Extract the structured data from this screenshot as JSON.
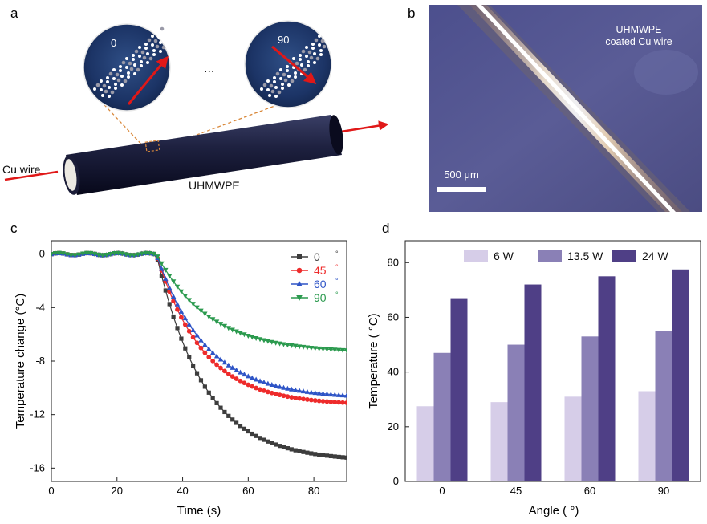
{
  "panel_labels": {
    "a": "a",
    "b": "b",
    "c": "c",
    "d": "d"
  },
  "panel_a": {
    "inset_left_angle": "0",
    "inset_right_angle": "90",
    "ellipsis": "...",
    "cu_wire_label": "Cu wire",
    "uhmwpe_label": "UHMWPE"
  },
  "panel_b": {
    "caption_line1": "UHMWPE",
    "caption_line2": "coated Cu wire",
    "scale_bar": "500 μm"
  },
  "colors": {
    "s0": "#3d3d3d",
    "s45": "#ee2b2b",
    "s60": "#2e54c6",
    "s90": "#2b9a4e",
    "light": "#d6cde8",
    "mid": "#8a80b6",
    "dark": "#4f3f86"
  },
  "chart_data": [
    {
      "type": "line",
      "title": "",
      "xlabel": "Time (s)",
      "ylabel": "Temperature change  (°C)",
      "xlim": [
        0,
        90
      ],
      "ylim": [
        -17,
        1
      ],
      "xticks": [
        0,
        20,
        40,
        60,
        80
      ],
      "yticks": [
        0,
        -4,
        -8,
        -12,
        -16
      ],
      "legend": "top-right",
      "series": [
        {
          "name": "0",
          "unit": "°",
          "color": "#3d3d3d",
          "marker": "square",
          "start": 32,
          "final": -15.5,
          "tau": 14.5
        },
        {
          "name": "45",
          "unit": "°",
          "color": "#ee2b2b",
          "marker": "circle",
          "start": 32,
          "final": -11.3,
          "tau": 14.0
        },
        {
          "name": "60",
          "unit": "°",
          "color": "#2e54c6",
          "marker": "triangle-up",
          "start": 32,
          "final": -10.8,
          "tau": 15.0
        },
        {
          "name": "90",
          "unit": "°",
          "color": "#2b9a4e",
          "marker": "triangle-down",
          "start": 32,
          "final": -7.4,
          "tau": 16.0
        }
      ]
    },
    {
      "type": "bar",
      "title": "",
      "xlabel": "Angle (  °)",
      "ylabel": "Temperature  (  °C)",
      "ylim": [
        0,
        88
      ],
      "yticks": [
        0,
        20,
        40,
        60,
        80
      ],
      "categories": [
        "0",
        "45",
        "60",
        "90"
      ],
      "legend": "top",
      "series": [
        {
          "name": "6 W",
          "color": "#d6cde8",
          "values": [
            27.5,
            29,
            31,
            33
          ]
        },
        {
          "name": "13.5 W",
          "color": "#8a80b6",
          "values": [
            47,
            50,
            53,
            55
          ]
        },
        {
          "name": "24 W",
          "color": "#4f3f86",
          "values": [
            67,
            72,
            75,
            77.5
          ]
        }
      ]
    }
  ]
}
